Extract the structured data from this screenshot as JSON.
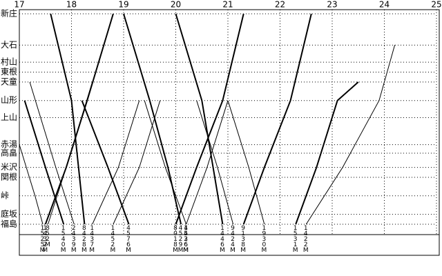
{
  "chart_data": {
    "type": "line",
    "xlim": [
      17,
      25
    ],
    "xticks": [
      17,
      18,
      19,
      20,
      21,
      22,
      23,
      24,
      25
    ],
    "ylim": [
      0,
      148
    ],
    "yticks": [
      {
        "value": 148,
        "label": "新庄"
      },
      {
        "value": 126,
        "label": "大石"
      },
      {
        "value": 114,
        "label": "村山"
      },
      {
        "value": 107,
        "label": "東根"
      },
      {
        "value": 100,
        "label": "天童"
      },
      {
        "value": 87,
        "label": "山形"
      },
      {
        "value": 75,
        "label": "上山"
      },
      {
        "value": 56,
        "label": "赤湯"
      },
      {
        "value": 50,
        "label": "高畠"
      },
      {
        "value": 40,
        "label": "米沢"
      },
      {
        "value": 33,
        "label": "関根"
      },
      {
        "value": 20,
        "label": "峠"
      },
      {
        "value": 7,
        "label": "庭坂"
      },
      {
        "value": 0,
        "label": "福島"
      }
    ],
    "grid": true,
    "color": "#000000",
    "series": [
      {
        "name": "1525M",
        "width": 1,
        "x": [
          17.0,
          17.3,
          17.45
        ],
        "values": [
          56,
          20,
          0
        ]
      },
      {
        "name": "1432M",
        "width": 2,
        "x": [
          17.5,
          17.9,
          18.3,
          18.8
        ],
        "values": [
          0,
          40,
          87,
          148
        ]
      },
      {
        "name": "852M",
        "width": 1,
        "x": [
          17.55,
          17.9,
          18.4
        ],
        "values": [
          0,
          40,
          100
        ]
      },
      {
        "name": "1540M",
        "width": 2,
        "x": [
          17.1,
          17.5,
          17.85
        ],
        "values": [
          87,
          40,
          0
        ]
      },
      {
        "name": "2439M",
        "width": 1,
        "x": [
          17.2,
          17.7,
          18.05
        ],
        "values": [
          100,
          40,
          0
        ]
      },
      {
        "name": "8428M",
        "width": 2,
        "x": [
          17.6,
          18.0,
          18.25
        ],
        "values": [
          148,
          87,
          0
        ]
      },
      {
        "name": "1437M",
        "width": 1,
        "x": [
          18.4,
          18.9,
          19.3
        ],
        "values": [
          0,
          40,
          87
        ]
      },
      {
        "name": "4576M",
        "width": 2,
        "x": [
          18.2,
          18.7,
          19.1
        ],
        "values": [
          87,
          40,
          0
        ]
      },
      {
        "name": "1452M",
        "width": 1,
        "x": [
          18.8,
          19.3,
          19.7
        ],
        "values": [
          0,
          40,
          87
        ]
      },
      {
        "name": "4529M",
        "width": 2,
        "x": [
          19.0,
          19.5,
          19.85,
          20.1
        ],
        "values": [
          148,
          87,
          40,
          0
        ]
      },
      {
        "name": "1436M",
        "width": 1,
        "x": [
          19.4,
          19.8,
          20.2
        ],
        "values": [
          87,
          40,
          0
        ]
      },
      {
        "name": "8018M",
        "width": 2,
        "x": [
          20.0,
          20.4,
          20.9,
          21.3
        ],
        "values": [
          0,
          40,
          87,
          148
        ]
      },
      {
        "name": "4526M",
        "width": 1,
        "x": [
          20.2,
          20.6,
          21.0
        ],
        "values": [
          0,
          40,
          87
        ]
      },
      {
        "name": "1446M",
        "width": 2,
        "x": [
          20.0,
          20.5,
          20.9
        ],
        "values": [
          148,
          87,
          0
        ]
      },
      {
        "name": "9424M",
        "width": 1,
        "x": [
          20.4,
          20.8,
          21.1
        ],
        "values": [
          87,
          40,
          0
        ]
      },
      {
        "name": "9138M",
        "width": 2,
        "x": [
          21.3,
          21.7,
          22.2,
          22.6
        ],
        "values": [
          0,
          40,
          87,
          148
        ]
      },
      {
        "name": "1930M",
        "width": 1,
        "x": [
          21.0,
          21.4,
          21.7
        ],
        "values": [
          87,
          40,
          0
        ]
      },
      {
        "name": "1531M",
        "width": 2,
        "x": [
          22.3,
          22.7,
          23.1,
          23.5
        ],
        "values": [
          0,
          40,
          87,
          100
        ]
      },
      {
        "name": "1422M",
        "width": 1,
        "x": [
          22.5,
          23.2,
          23.9,
          24.2
        ],
        "values": [
          0,
          40,
          87,
          126
        ]
      }
    ]
  }
}
